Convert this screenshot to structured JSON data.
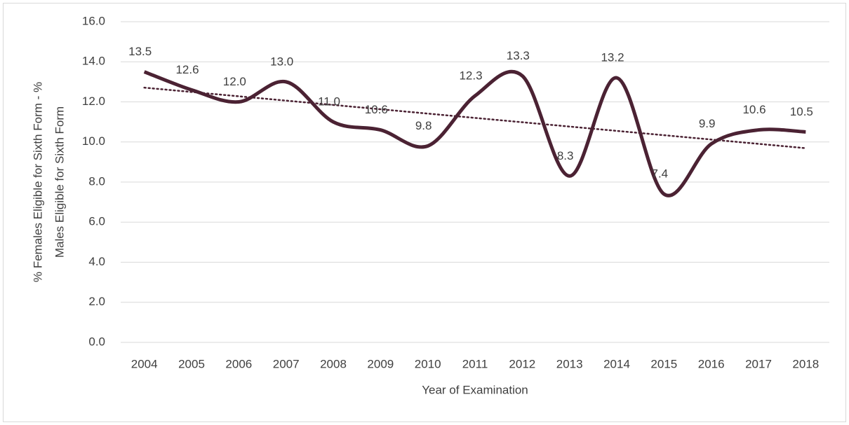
{
  "chart_data": {
    "type": "line",
    "xlabel": "Year of Examination",
    "ylabel": [
      "% Females Eligible for Sixth Form - %",
      "Males Eligible for Sixth Form"
    ],
    "categories": [
      "2004",
      "2005",
      "2006",
      "2007",
      "2008",
      "2009",
      "2010",
      "2011",
      "2012",
      "2013",
      "2014",
      "2015",
      "2016",
      "2017",
      "2018"
    ],
    "series": [
      {
        "color": "#4b2233",
        "smooth": true,
        "trendline": "linear",
        "values": [
          13.5,
          12.6,
          12.0,
          13.0,
          11.0,
          10.6,
          9.8,
          12.3,
          13.3,
          8.3,
          13.2,
          7.4,
          9.9,
          10.6,
          10.5
        ],
        "value_labels": [
          "13.5",
          "12.6",
          "12.0",
          "13.0",
          "11.0",
          "10.6",
          "9.8",
          "12.3",
          "13.3",
          "8.3",
          "13.2",
          "7.4",
          "9.9",
          "10.6",
          "10.5"
        ]
      }
    ],
    "ylim": [
      0,
      16
    ],
    "yticks": [
      {
        "value": 0,
        "label": "0.0"
      },
      {
        "value": 2,
        "label": "2.0"
      },
      {
        "value": 4,
        "label": "4.0"
      },
      {
        "value": 6,
        "label": "6.0"
      },
      {
        "value": 8,
        "label": "8.0"
      },
      {
        "value": 10,
        "label": "10.0"
      },
      {
        "value": 12,
        "label": "12.0"
      },
      {
        "value": 14,
        "label": "14.0"
      },
      {
        "value": 16,
        "label": "16.0"
      }
    ],
    "grid": true
  }
}
